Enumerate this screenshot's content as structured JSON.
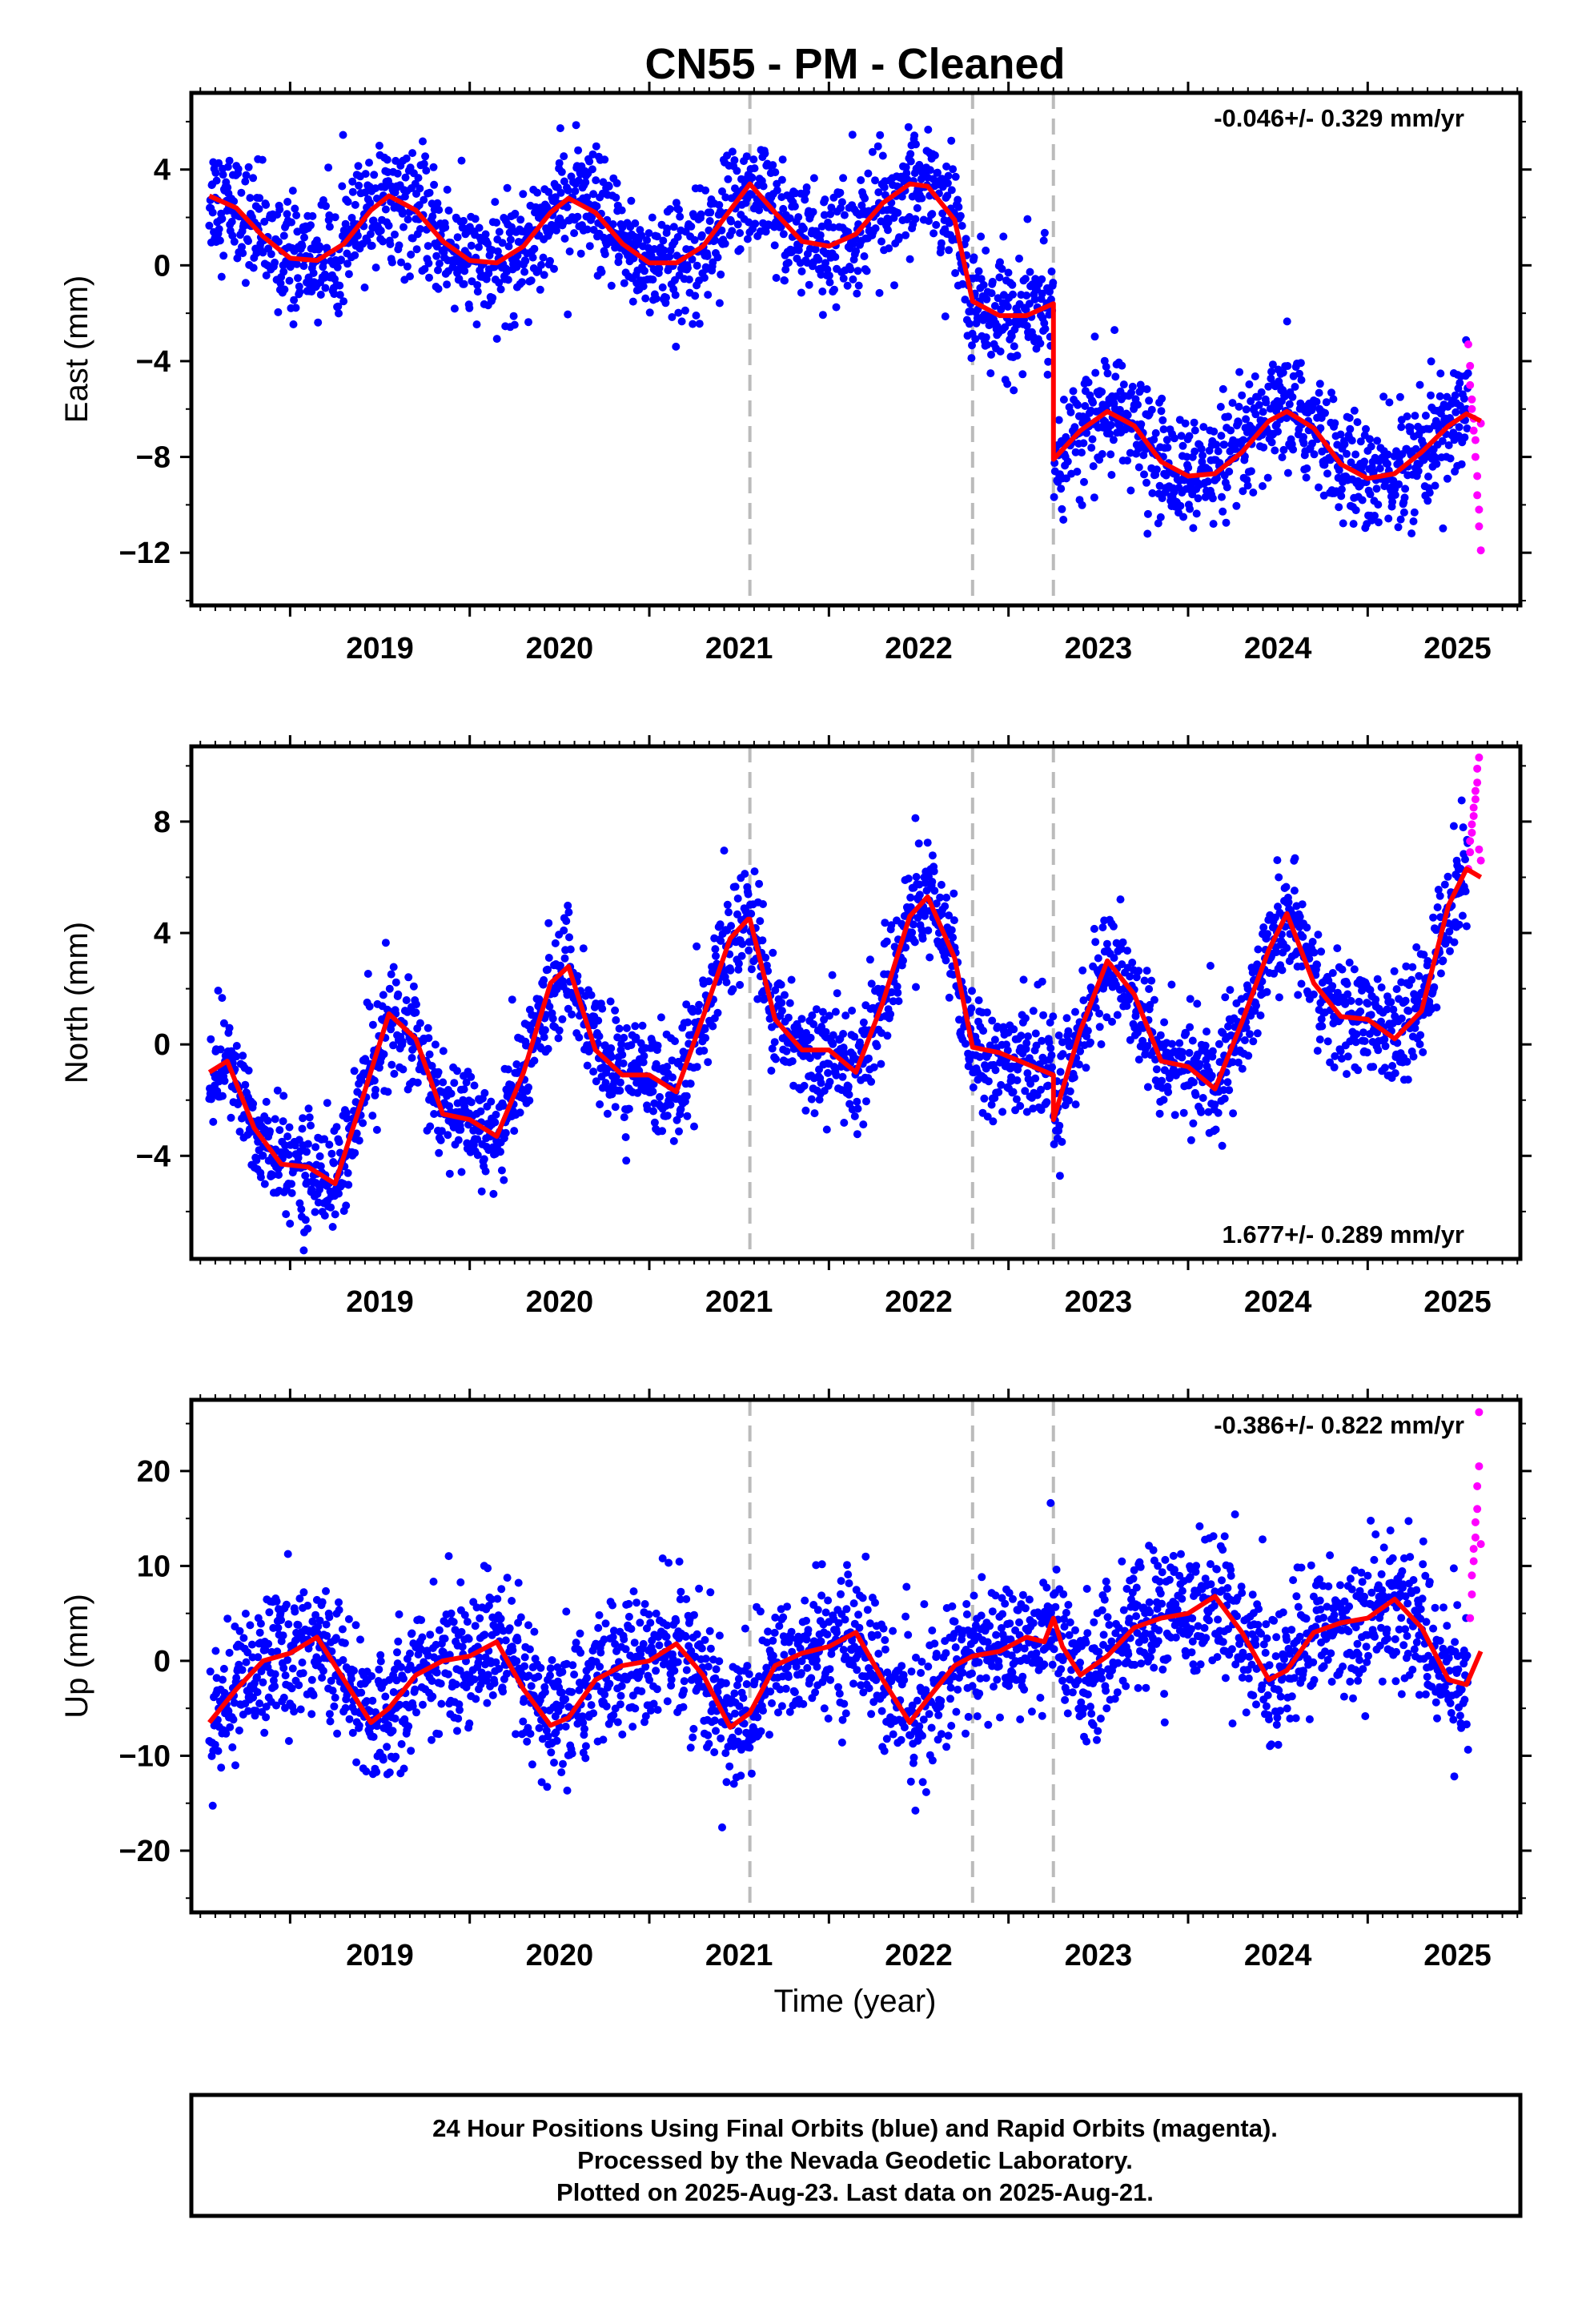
{
  "title": "CN55  - PM - Cleaned",
  "xlabel": "Time (year)",
  "footer": [
    "24 Hour Positions Using Final Orbits (blue) and Rapid Orbits (magenta).",
    "Processed by the Nevada Geodetic Laboratory.",
    "Plotted on 2025-Aug-23. Last data on 2025-Aug-21."
  ],
  "colors": {
    "final": "#0000ff",
    "rapid": "#ff00ff",
    "model": "#ff0000",
    "steps": "#bbbbbb",
    "frame": "#000000"
  },
  "chart_data": [
    {
      "type": "scatter",
      "ylabel": "East (mm)",
      "rate": "-0.046+/- 0.329 mm/yr",
      "rate_position": "top-right",
      "xlim": [
        2018.45,
        2025.85
      ],
      "ylim": [
        -14.2,
        7.2
      ],
      "yticks": [
        -12,
        -8,
        -4,
        0,
        4
      ],
      "yticks_minor": [
        -14,
        -10,
        -6,
        -2,
        2,
        6
      ],
      "xticks": [
        2019,
        2020,
        2021,
        2022,
        2023,
        2024,
        2025
      ],
      "steps": [
        2021.56,
        2022.8,
        2023.25
      ],
      "grid": false,
      "series": [
        {
          "name": "Final Orbits",
          "color": "#0000ff",
          "kind": "points",
          "x_range": [
            2018.55,
            2025.56
          ],
          "scatter": 1.2
        },
        {
          "name": "Rapid Orbits",
          "color": "#ff00ff",
          "kind": "points",
          "x": [
            2025.56,
            2025.57,
            2025.57,
            2025.58,
            2025.58,
            2025.59,
            2025.59,
            2025.6,
            2025.6,
            2025.61,
            2025.61,
            2025.62,
            2025.62,
            2025.63,
            2025.63
          ],
          "y": [
            -3.3,
            -4.2,
            -5.0,
            -5.6,
            -6.0,
            -6.4,
            -6.9,
            -7.3,
            -8.0,
            -8.8,
            -9.6,
            -10.2,
            -10.9,
            -11.9,
            -6.6
          ]
        },
        {
          "name": "Model",
          "color": "#ff0000",
          "kind": "line",
          "x": [
            2018.55,
            2018.7,
            2018.85,
            2019.0,
            2019.15,
            2019.3,
            2019.45,
            2019.55,
            2019.7,
            2019.85,
            2020.0,
            2020.15,
            2020.3,
            2020.45,
            2020.55,
            2020.7,
            2020.85,
            2021.0,
            2021.15,
            2021.3,
            2021.45,
            2021.55,
            2021.56,
            2021.7,
            2021.85,
            2022.0,
            2022.15,
            2022.3,
            2022.45,
            2022.55,
            2022.7,
            2022.8,
            2022.95,
            2023.1,
            2023.25,
            2023.25,
            2023.4,
            2023.55,
            2023.7,
            2023.85,
            2024.0,
            2024.15,
            2024.3,
            2024.45,
            2024.55,
            2024.7,
            2024.85,
            2025.0,
            2025.15,
            2025.3,
            2025.45,
            2025.55,
            2025.63
          ],
          "y": [
            2.9,
            2.4,
            1.2,
            0.3,
            0.2,
            0.9,
            2.3,
            2.9,
            2.3,
            1.0,
            0.2,
            0.1,
            0.8,
            2.2,
            2.8,
            2.2,
            0.9,
            0.1,
            0.1,
            0.8,
            2.3,
            3.3,
            3.4,
            2.2,
            1.0,
            0.8,
            1.3,
            2.6,
            3.4,
            3.3,
            1.9,
            -1.5,
            -2.1,
            -2.1,
            -1.6,
            -8.1,
            -6.9,
            -6.1,
            -6.7,
            -8.2,
            -8.8,
            -8.7,
            -7.8,
            -6.5,
            -6.1,
            -6.8,
            -8.3,
            -8.9,
            -8.7,
            -7.8,
            -6.7,
            -6.2,
            -6.5
          ]
        }
      ]
    },
    {
      "type": "scatter",
      "ylabel": "North (mm)",
      "rate": "1.677+/- 0.289 mm/yr",
      "rate_position": "bottom-right",
      "xlim": [
        2018.45,
        2025.85
      ],
      "ylim": [
        -7.7,
        10.7
      ],
      "yticks": [
        -4,
        0,
        4,
        8
      ],
      "yticks_minor": [
        -6,
        -2,
        2,
        6,
        10
      ],
      "xticks": [
        2019,
        2020,
        2021,
        2022,
        2023,
        2024,
        2025
      ],
      "steps": [
        2021.56,
        2022.8,
        2023.25
      ],
      "grid": false,
      "series": [
        {
          "name": "Final Orbits",
          "color": "#0000ff",
          "kind": "points",
          "x_range": [
            2018.55,
            2025.56
          ],
          "scatter": 1.0
        },
        {
          "name": "Rapid Orbits",
          "color": "#ff00ff",
          "kind": "points",
          "x": [
            2025.56,
            2025.57,
            2025.57,
            2025.58,
            2025.58,
            2025.59,
            2025.59,
            2025.6,
            2025.6,
            2025.61,
            2025.61,
            2025.62,
            2025.62,
            2025.63
          ],
          "y": [
            6.3,
            6.9,
            7.3,
            7.6,
            7.9,
            8.2,
            8.5,
            8.8,
            9.1,
            9.4,
            9.9,
            10.3,
            7.0,
            6.6
          ]
        },
        {
          "name": "Model",
          "color": "#ff0000",
          "kind": "line",
          "x": [
            2018.55,
            2018.65,
            2018.8,
            2018.95,
            2019.1,
            2019.25,
            2019.4,
            2019.55,
            2019.7,
            2019.85,
            2020.0,
            2020.15,
            2020.3,
            2020.45,
            2020.55,
            2020.7,
            2020.85,
            2021.0,
            2021.15,
            2021.3,
            2021.45,
            2021.55,
            2021.56,
            2021.7,
            2021.85,
            2022.0,
            2022.15,
            2022.3,
            2022.45,
            2022.55,
            2022.7,
            2022.8,
            2022.95,
            2023.1,
            2023.25,
            2023.25,
            2023.4,
            2023.55,
            2023.7,
            2023.85,
            2024.0,
            2024.15,
            2024.3,
            2024.45,
            2024.55,
            2024.7,
            2024.85,
            2025.0,
            2025.15,
            2025.3,
            2025.45,
            2025.55,
            2025.63
          ],
          "y": [
            -1.0,
            -0.6,
            -3.0,
            -4.3,
            -4.4,
            -5.0,
            -2.0,
            1.1,
            0.2,
            -2.5,
            -2.7,
            -3.3,
            -1.0,
            2.2,
            2.8,
            -0.2,
            -1.1,
            -1.1,
            -1.7,
            1.0,
            3.8,
            4.5,
            4.5,
            0.9,
            -0.2,
            -0.2,
            -1.0,
            1.5,
            4.6,
            5.3,
            3.1,
            -0.1,
            -0.3,
            -0.7,
            -1.1,
            -2.7,
            0.5,
            3.0,
            1.8,
            -0.6,
            -0.8,
            -1.6,
            0.8,
            3.4,
            4.7,
            2.2,
            1.0,
            0.9,
            0.2,
            1.2,
            5.0,
            6.3,
            6.0
          ]
        }
      ]
    },
    {
      "type": "scatter",
      "ylabel": "Up (mm)",
      "rate": "-0.386+/- 0.822 mm/yr",
      "rate_position": "top-right",
      "xlim": [
        2018.45,
        2025.85
      ],
      "ylim": [
        -26.5,
        27.5
      ],
      "yticks": [
        -20,
        -10,
        0,
        10,
        20
      ],
      "yticks_minor": [
        -25,
        -15,
        -5,
        5,
        15,
        25
      ],
      "xticks": [
        2019,
        2020,
        2021,
        2022,
        2023,
        2024,
        2025
      ],
      "steps": [
        2021.56,
        2022.8,
        2023.25
      ],
      "grid": false,
      "series": [
        {
          "name": "Final Orbits",
          "color": "#0000ff",
          "kind": "points",
          "x_range": [
            2018.55,
            2025.56
          ],
          "scatter": 3.6
        },
        {
          "name": "Rapid Orbits",
          "color": "#ff00ff",
          "kind": "points",
          "x": [
            2025.57,
            2025.58,
            2025.58,
            2025.59,
            2025.59,
            2025.6,
            2025.6,
            2025.61,
            2025.61,
            2025.62,
            2025.62,
            2025.63
          ],
          "y": [
            4.5,
            7.0,
            9.0,
            10.5,
            11.8,
            13.0,
            14.6,
            16.0,
            18.4,
            20.5,
            26.2,
            12.3
          ]
        },
        {
          "name": "Model",
          "color": "#ff0000",
          "kind": "line",
          "x": [
            2018.55,
            2018.7,
            2018.85,
            2019.0,
            2019.15,
            2019.3,
            2019.45,
            2019.55,
            2019.7,
            2019.85,
            2020.0,
            2020.15,
            2020.3,
            2020.45,
            2020.55,
            2020.7,
            2020.85,
            2021.0,
            2021.15,
            2021.3,
            2021.45,
            2021.56,
            2021.7,
            2021.85,
            2022.0,
            2022.15,
            2022.3,
            2022.45,
            2022.55,
            2022.7,
            2022.8,
            2022.95,
            2023.1,
            2023.2,
            2023.25,
            2023.3,
            2023.4,
            2023.55,
            2023.7,
            2023.85,
            2024.0,
            2024.15,
            2024.3,
            2024.45,
            2024.55,
            2024.7,
            2024.85,
            2025.0,
            2025.15,
            2025.3,
            2025.45,
            2025.55,
            2025.63
          ],
          "y": [
            -6.5,
            -3.0,
            0.0,
            0.8,
            2.5,
            -2.0,
            -6.5,
            -5.0,
            -1.5,
            0.0,
            0.5,
            2.0,
            -3.0,
            -6.8,
            -6.0,
            -2.0,
            -0.5,
            0.0,
            1.8,
            -1.5,
            -7.0,
            -5.5,
            -0.5,
            0.8,
            1.5,
            3.0,
            -2.0,
            -6.5,
            -4.0,
            -0.5,
            0.5,
            1.0,
            2.5,
            2.0,
            4.5,
            1.5,
            -1.5,
            0.5,
            3.5,
            4.5,
            5.0,
            6.8,
            3.0,
            -2.0,
            -1.0,
            3.0,
            4.0,
            4.5,
            6.5,
            3.5,
            -2.0,
            -2.5,
            1.0
          ]
        }
      ]
    }
  ]
}
